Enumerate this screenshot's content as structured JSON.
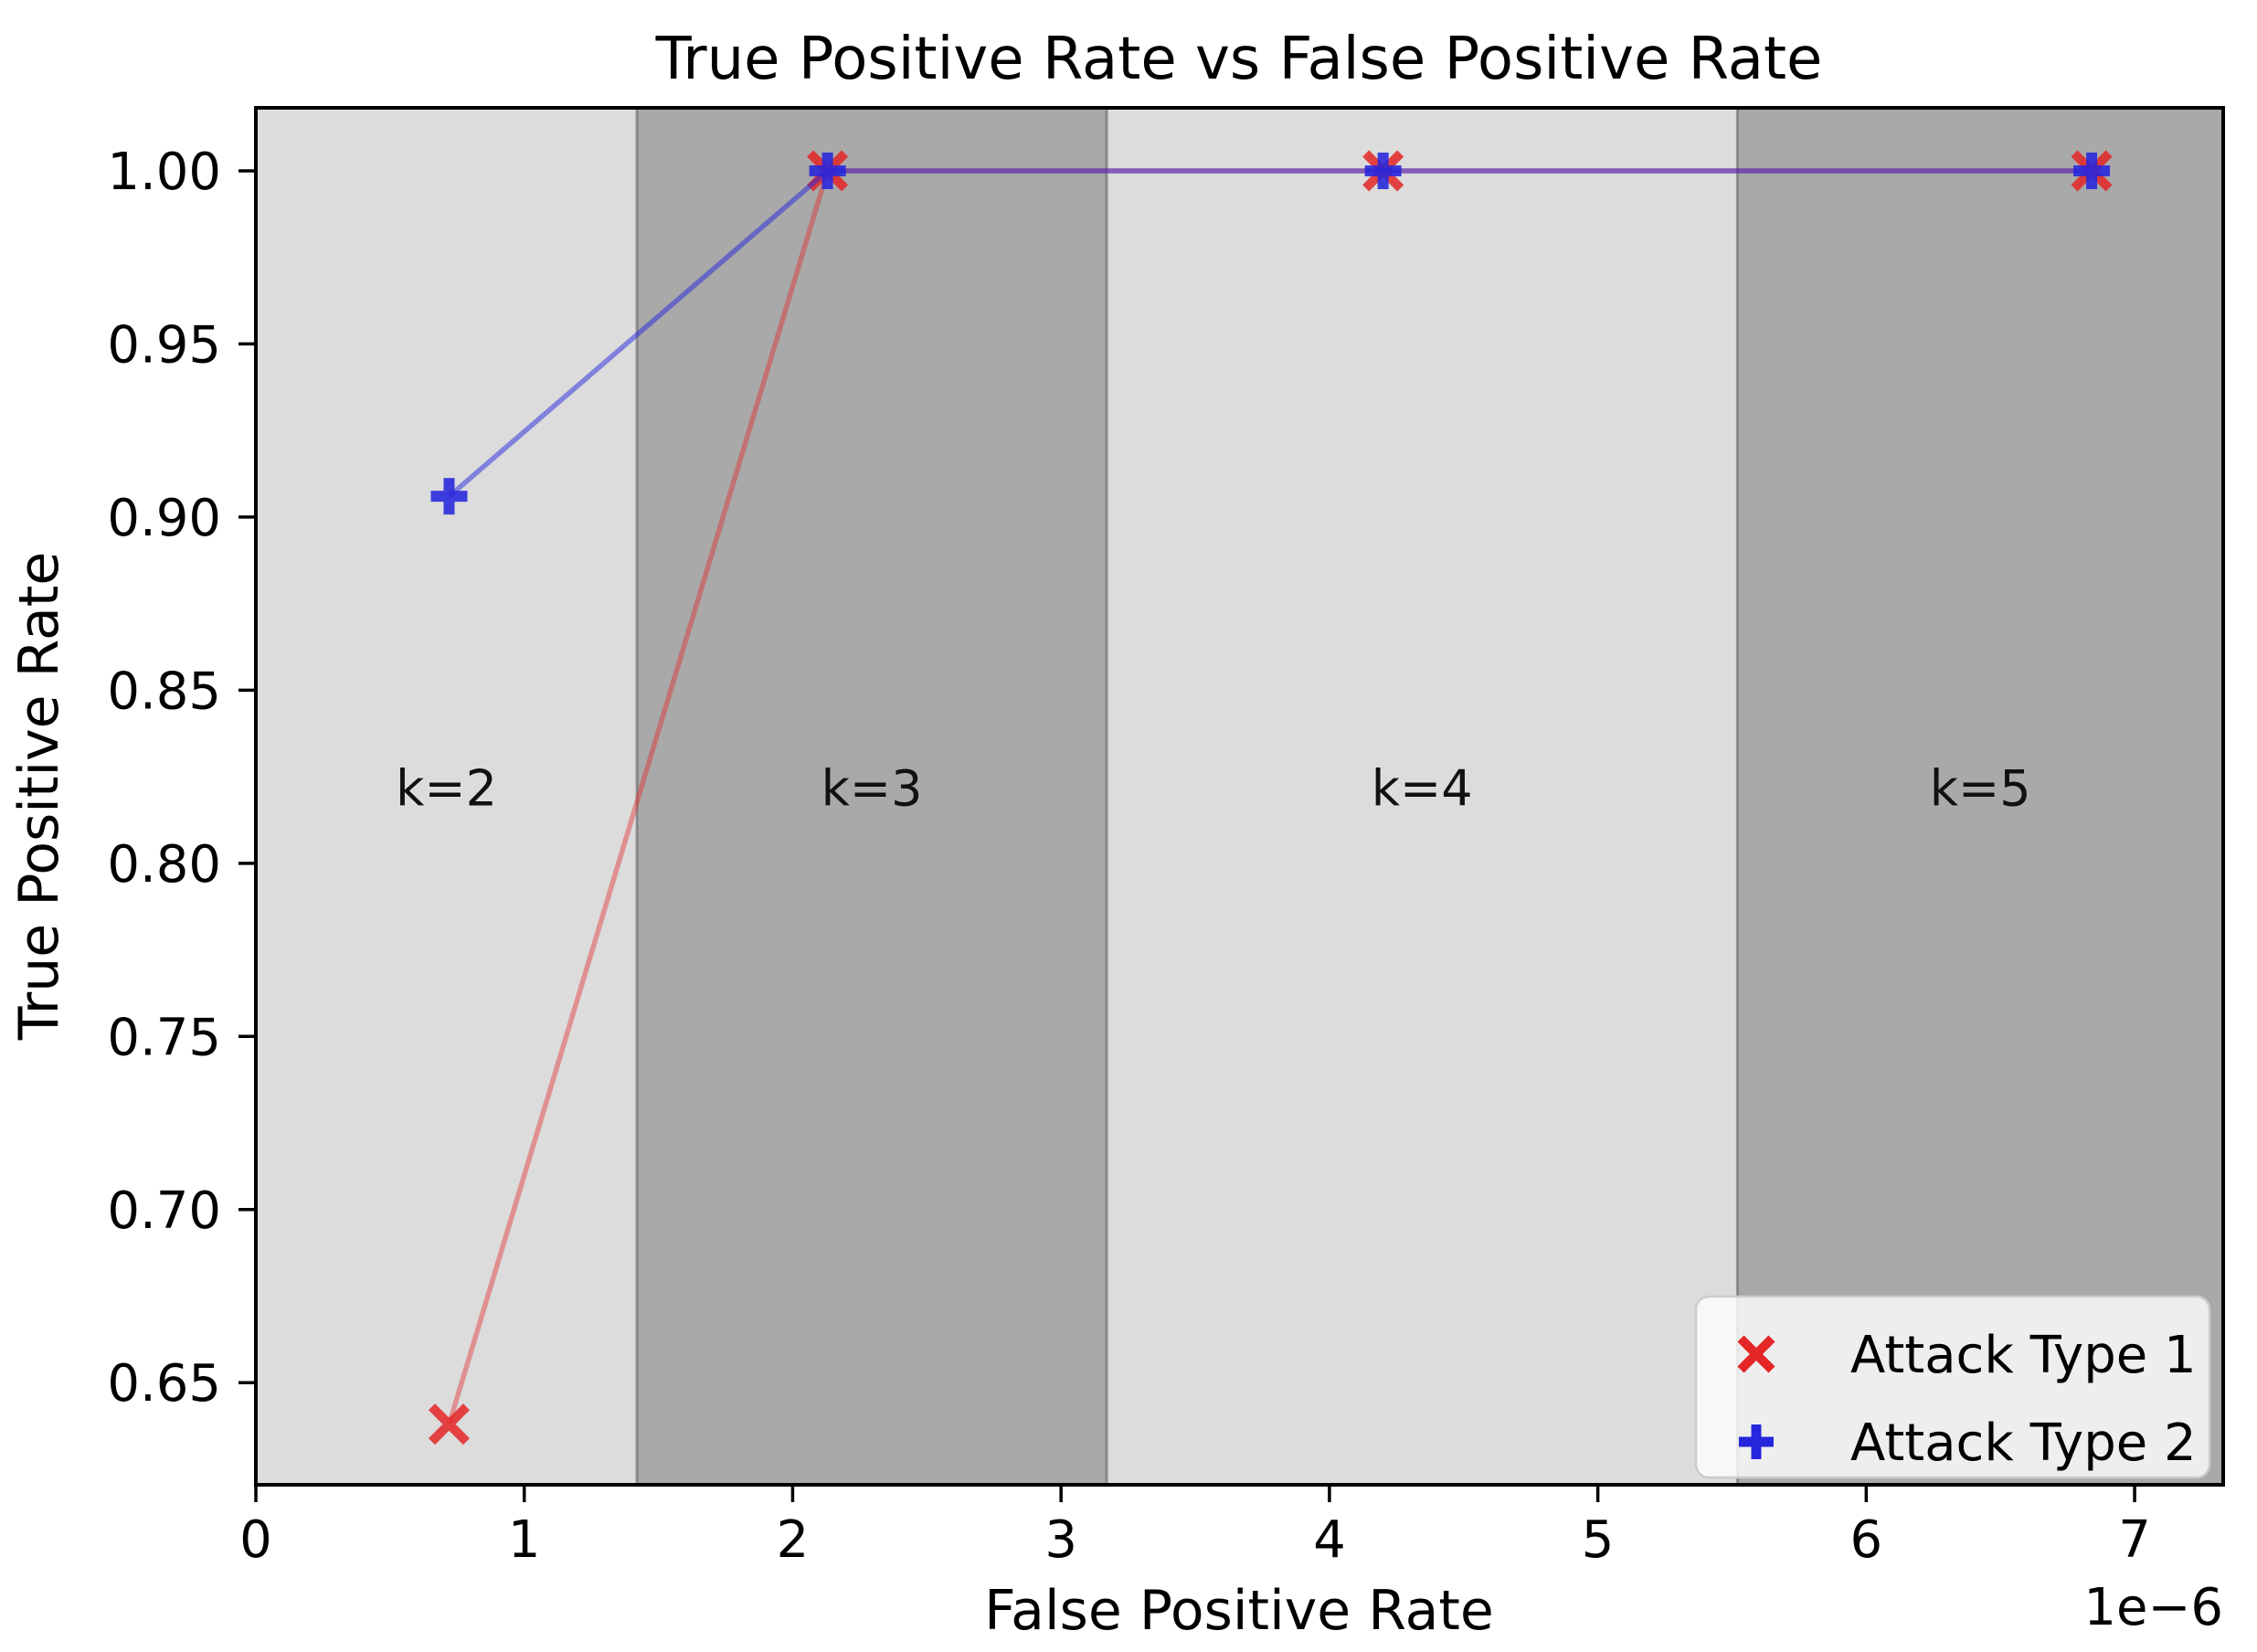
{
  "chart_data": {
    "type": "line",
    "title": "True Positive Rate vs False Positive Rate",
    "xlabel": "False Positive Rate",
    "ylabel": "True Positive Rate",
    "x_offset_text": "1e−6",
    "x_unit_multiplier": 1e-06,
    "xlim": [
      0,
      7.33
    ],
    "ylim": [
      0.6205,
      1.0182
    ],
    "x_ticks": [
      0,
      1,
      2,
      3,
      4,
      5,
      6,
      7
    ],
    "x_tick_labels": [
      "0",
      "1",
      "2",
      "3",
      "4",
      "5",
      "6",
      "7"
    ],
    "y_ticks": [
      0.65,
      0.7,
      0.75,
      0.8,
      0.85,
      0.9,
      0.95,
      1.0
    ],
    "y_tick_labels": [
      "0.65",
      "0.70",
      "0.75",
      "0.80",
      "0.85",
      "0.90",
      "0.95",
      "1.00"
    ],
    "grid": false,
    "bands": [
      {
        "label": "k=2",
        "x0": 0.0,
        "x1": 1.42,
        "shade": "light"
      },
      {
        "label": "k=3",
        "x0": 1.42,
        "x1": 3.17,
        "shade": "dark"
      },
      {
        "label": "k=4",
        "x0": 3.17,
        "x1": 5.52,
        "shade": "light"
      },
      {
        "label": "k=5",
        "x0": 5.52,
        "x1": 7.33,
        "shade": "dark"
      }
    ],
    "band_label_y": 0.822,
    "series": [
      {
        "name": "Attack Type 1",
        "marker": "x",
        "color": "#e42626",
        "line_opacity": 0.42,
        "marker_opacity": 0.85,
        "x": [
          0.72,
          2.13,
          4.2,
          6.84
        ],
        "y": [
          0.638,
          1.0,
          1.0,
          1.0
        ]
      },
      {
        "name": "Attack Type 2",
        "marker": "+",
        "color": "#2626dd",
        "line_opacity": 0.5,
        "marker_opacity": 0.88,
        "x": [
          0.72,
          2.13,
          4.2,
          6.84
        ],
        "y": [
          0.906,
          1.0,
          1.0,
          1.0
        ]
      }
    ],
    "legend": {
      "location": "lower right"
    },
    "colors": {
      "band_light": "#dcdcdc",
      "band_dark": "#a9a9a9",
      "band_edge": "rgba(100,100,100,0.6)",
      "spine": "#000000",
      "legend_face": "rgba(255,255,255,0.8)",
      "legend_edge": "#cccccc"
    }
  }
}
